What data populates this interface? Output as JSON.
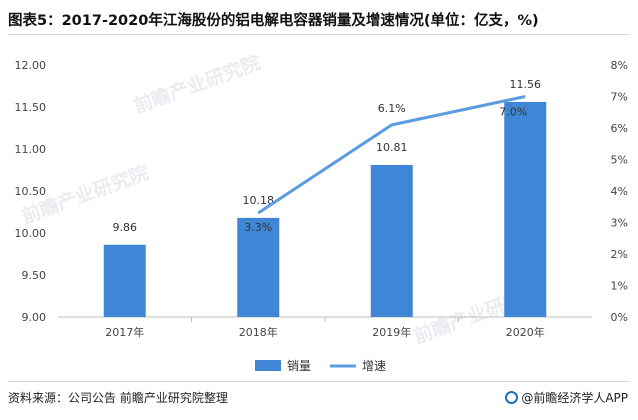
{
  "title": "图表5：2017-2020年江海股份的铝电解电容器销量及增速情况(单位：亿支，%)",
  "watermark": "前瞻产业研究院",
  "footer": {
    "source": "资料来源：公司公告 前瞻产业研究院整理",
    "brand": "@前瞻经济学人APP"
  },
  "colors": {
    "bar": "#3f86d6",
    "line": "#5b9bdf",
    "grid": "#e6e6e6",
    "axis_text": "#444444"
  },
  "chart_data": {
    "type": "bar",
    "categories": [
      "2017年",
      "2018年",
      "2019年",
      "2020年"
    ],
    "series": [
      {
        "name": "销量",
        "type": "bar",
        "axis": "left",
        "values": [
          9.86,
          10.18,
          10.81,
          11.56
        ],
        "labels": [
          "9.86",
          "10.18",
          "10.81",
          "11.56"
        ]
      },
      {
        "name": "增速",
        "type": "line",
        "axis": "right",
        "values": [
          null,
          3.3,
          6.1,
          7.0
        ],
        "labels": [
          "",
          "3.3%",
          "6.1%",
          "7.0%"
        ]
      }
    ],
    "left_axis": {
      "ylim": [
        9.0,
        12.0
      ],
      "ticks": [
        "9.00",
        "9.50",
        "10.00",
        "10.50",
        "11.00",
        "11.50",
        "12.00"
      ]
    },
    "right_axis": {
      "ylim": [
        0,
        8
      ],
      "ticks": [
        "0%",
        "1%",
        "2%",
        "3%",
        "4%",
        "5%",
        "6%",
        "7%",
        "8%"
      ]
    },
    "grid": false,
    "legend": "bottom"
  }
}
